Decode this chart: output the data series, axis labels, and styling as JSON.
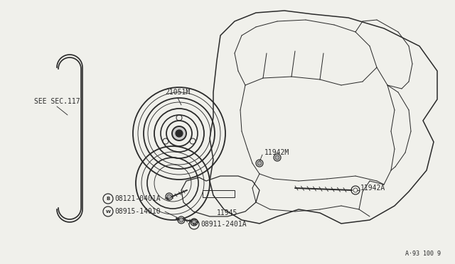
{
  "bg_color": "#f0f0eb",
  "line_color": "#2a2a2a",
  "labels": {
    "see_sec": "SEE SEC.117",
    "part1": "21051M",
    "part2": "11942M",
    "part3": "11942A",
    "part4": "11945",
    "part5": "08121-0401A",
    "part6": "08915-14010",
    "part7": "08911-2401A",
    "footnote": "A·93 100 9"
  },
  "text_color": "#2a2a2a",
  "lw": 0.9
}
